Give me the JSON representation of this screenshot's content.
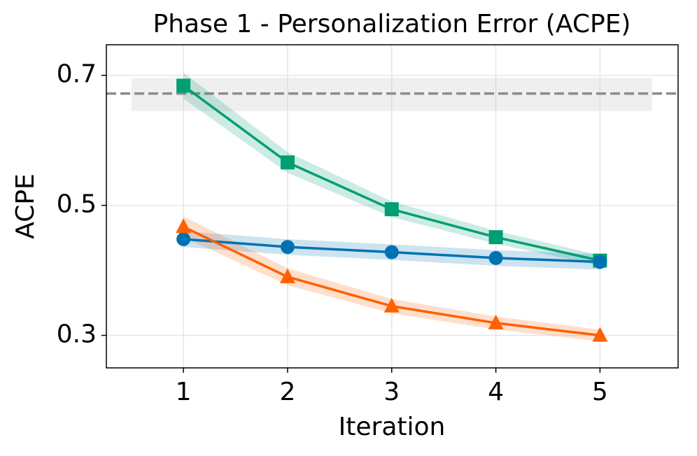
{
  "chart_data": {
    "type": "line",
    "title": "Phase 1 - Personalization Error (ACPE)",
    "x_label": "Iteration",
    "y_label": "ACPE",
    "x": [
      1,
      2,
      3,
      4,
      5
    ],
    "series": [
      {
        "color": "#009e73",
        "marker": "square",
        "values": [
          0.684,
          0.566,
          0.494,
          0.451,
          0.415
        ],
        "error": [
          0.02,
          0.016,
          0.012,
          0.01,
          0.008
        ]
      },
      {
        "color": "#0072b2",
        "marker": "circle",
        "values": [
          0.448,
          0.436,
          0.428,
          0.419,
          0.413
        ],
        "error": [
          0.012,
          0.012,
          0.012,
          0.012,
          0.012
        ]
      },
      {
        "color": "#ff6000",
        "marker": "triangle",
        "values": [
          0.467,
          0.39,
          0.345,
          0.319,
          0.3
        ],
        "error": [
          0.016,
          0.013,
          0.011,
          0.01,
          0.009
        ]
      }
    ],
    "reference": {
      "value": 0.672,
      "band": [
        0.645,
        0.696
      ],
      "xrange": [
        0.5,
        5.5
      ],
      "color": "#8c8c8c"
    },
    "xlim": [
      0.26,
      5.75
    ],
    "xticks": [
      1,
      2,
      3,
      4,
      5
    ],
    "ylim": [
      0.25,
      0.747
    ],
    "yticks": [
      0.3,
      0.5,
      0.7
    ],
    "grid": true
  }
}
